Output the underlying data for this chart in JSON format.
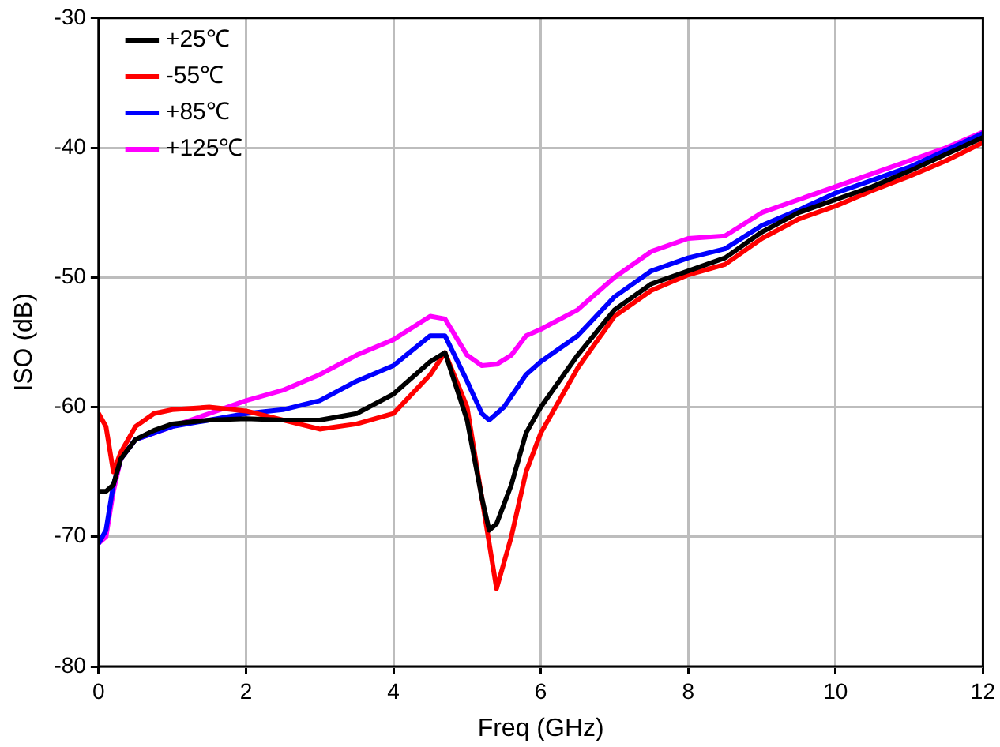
{
  "chart_data": {
    "type": "line",
    "xlabel": "Freq (GHz)",
    "ylabel": "ISO (dB)",
    "xlim": [
      0,
      12
    ],
    "xticks": [
      0,
      2,
      4,
      6,
      8,
      10,
      12
    ],
    "ylim": [
      -80,
      -30
    ],
    "yticks": [
      -80,
      -70,
      -60,
      -50,
      -40,
      -30
    ],
    "grid": true,
    "legend": "top left",
    "marker": "none",
    "line_style": "solid",
    "series": [
      {
        "name": "+25℃",
        "color": "#000000",
        "x": [
          0,
          0.1,
          0.2,
          0.3,
          0.5,
          0.75,
          1,
          1.5,
          2,
          2.5,
          3,
          3.5,
          4,
          4.5,
          4.7,
          5,
          5.2,
          5.3,
          5.4,
          5.6,
          5.8,
          6,
          6.5,
          7,
          7.5,
          8,
          8.5,
          9,
          9.5,
          10,
          10.5,
          11,
          11.5,
          12
        ],
        "values": [
          -66.5,
          -66.5,
          -66,
          -64,
          -62.5,
          -61.8,
          -61.3,
          -61,
          -60.9,
          -61,
          -61,
          -60.5,
          -59,
          -56.5,
          -55.8,
          -61,
          -67,
          -69.5,
          -69,
          -66,
          -62,
          -60,
          -56,
          -52.5,
          -50.5,
          -49.5,
          -48.5,
          -46.5,
          -45,
          -44,
          -43,
          -41.8,
          -40.5,
          -39.2
        ]
      },
      {
        "name": "-55℃",
        "color": "#ff0000",
        "x": [
          0,
          0.1,
          0.2,
          0.3,
          0.5,
          0.75,
          1,
          1.5,
          2,
          2.5,
          3,
          3.5,
          4,
          4.5,
          4.7,
          5,
          5.2,
          5.4,
          5.6,
          5.8,
          6,
          6.5,
          7,
          7.5,
          8,
          8.5,
          9,
          9.5,
          10,
          10.5,
          11,
          11.5,
          12
        ],
        "values": [
          -60.5,
          -61.5,
          -65,
          -63.5,
          -61.5,
          -60.5,
          -60.2,
          -60,
          -60.3,
          -61,
          -61.7,
          -61.3,
          -60.5,
          -57.5,
          -55.8,
          -60,
          -67,
          -74,
          -70,
          -65,
          -62,
          -57,
          -53,
          -51,
          -49.8,
          -49,
          -47,
          -45.5,
          -44.5,
          -43.3,
          -42.2,
          -41,
          -39.6
        ]
      },
      {
        "name": "+85℃",
        "color": "#0000ff",
        "x": [
          0,
          0.1,
          0.2,
          0.3,
          0.5,
          0.75,
          1,
          1.5,
          2,
          2.5,
          3,
          3.5,
          4,
          4.5,
          4.7,
          5,
          5.2,
          5.3,
          5.5,
          5.8,
          6,
          6.5,
          7,
          7.5,
          8,
          8.5,
          9,
          9.5,
          10,
          10.5,
          11,
          11.5,
          12
        ],
        "values": [
          -70.5,
          -69.5,
          -66,
          -64,
          -62.5,
          -62,
          -61.5,
          -61,
          -60.5,
          -60.2,
          -59.5,
          -58,
          -56.8,
          -54.5,
          -54.5,
          -58,
          -60.5,
          -61,
          -60,
          -57.5,
          -56.5,
          -54.5,
          -51.5,
          -49.5,
          -48.5,
          -47.8,
          -46,
          -44.8,
          -43.5,
          -42.5,
          -41.5,
          -40.2,
          -38.9
        ]
      },
      {
        "name": "+125℃",
        "color": "#ff00ff",
        "x": [
          0,
          0.1,
          0.2,
          0.3,
          0.5,
          0.75,
          1,
          1.5,
          2,
          2.5,
          3,
          3.5,
          4,
          4.5,
          4.7,
          5,
          5.2,
          5.4,
          5.6,
          5.8,
          6,
          6.5,
          7,
          7.5,
          8,
          8.5,
          9,
          9.5,
          10,
          10.5,
          11,
          11.5,
          12
        ],
        "values": [
          -70.5,
          -70,
          -66.5,
          -64,
          -62.5,
          -62,
          -61.5,
          -60.5,
          -59.5,
          -58.7,
          -57.5,
          -56,
          -54.8,
          -53,
          -53.2,
          -56,
          -56.8,
          -56.7,
          -56,
          -54.5,
          -54,
          -52.5,
          -50,
          -48,
          -47,
          -46.8,
          -45,
          -44,
          -43,
          -42,
          -41,
          -40,
          -38.8
        ]
      }
    ]
  }
}
